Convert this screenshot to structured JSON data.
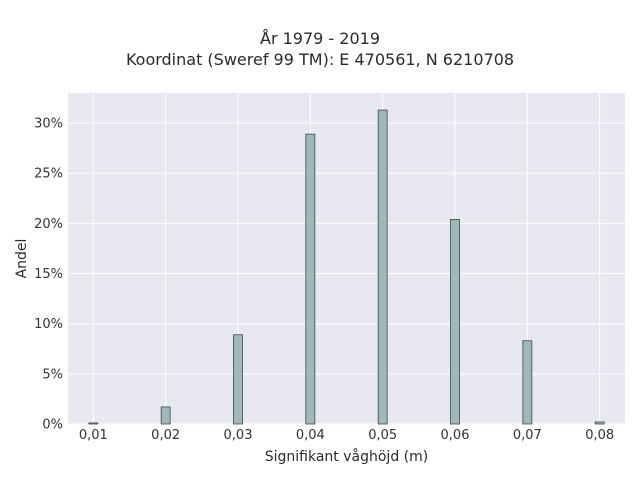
{
  "chart_data": {
    "type": "bar",
    "title": "År 1979 - 2019",
    "subtitle": "Koordinat (Sweref 99 TM): E 470561, N 6210708",
    "xlabel": "Signifikant våghöjd (m)",
    "ylabel": "Andel",
    "categories": [
      "0,01",
      "0,02",
      "0,03",
      "0,04",
      "0,05",
      "0,06",
      "0,07",
      "0,08"
    ],
    "x": [
      0.01,
      0.02,
      0.03,
      0.04,
      0.05,
      0.06,
      0.07,
      0.08
    ],
    "values": [
      0.1,
      1.7,
      8.9,
      28.9,
      31.3,
      20.4,
      8.3,
      0.2
    ],
    "value_unit": "%",
    "xlim": [
      0.0065,
      0.0835
    ],
    "ylim": [
      0,
      33
    ],
    "yticks": [
      0,
      5,
      10,
      15,
      20,
      25,
      30
    ],
    "ytick_labels": [
      "0%",
      "5%",
      "10%",
      "15%",
      "20%",
      "25%",
      "30%"
    ],
    "xtick_labels": [
      "0,01",
      "0,02",
      "0,03",
      "0,04",
      "0,05",
      "0,06",
      "0,07",
      "0,08"
    ],
    "grid": true,
    "legend": "none",
    "colors": {
      "background": "#e8e8f0",
      "bar_fill": "#a1b8b9",
      "bar_edge": "#3a4a4a",
      "grid": "#ffffff"
    }
  }
}
